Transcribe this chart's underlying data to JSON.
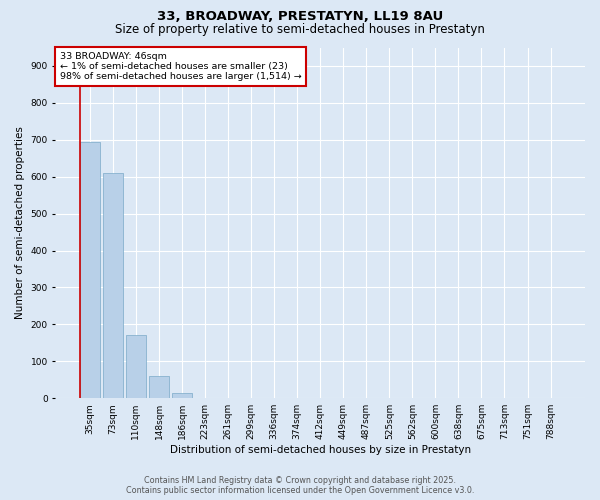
{
  "title": "33, BROADWAY, PRESTATYN, LL19 8AU",
  "subtitle": "Size of property relative to semi-detached houses in Prestatyn",
  "xlabel": "Distribution of semi-detached houses by size in Prestatyn",
  "ylabel": "Number of semi-detached properties",
  "categories": [
    "35sqm",
    "73sqm",
    "110sqm",
    "148sqm",
    "186sqm",
    "223sqm",
    "261sqm",
    "299sqm",
    "336sqm",
    "374sqm",
    "412sqm",
    "449sqm",
    "487sqm",
    "525sqm",
    "562sqm",
    "600sqm",
    "638sqm",
    "675sqm",
    "713sqm",
    "751sqm",
    "788sqm"
  ],
  "values": [
    695,
    610,
    170,
    60,
    14,
    0,
    0,
    0,
    0,
    0,
    0,
    0,
    0,
    0,
    0,
    0,
    0,
    0,
    0,
    0,
    0
  ],
  "bar_color": "#b8d0e8",
  "bar_edge_color": "#7aaac8",
  "subject_line_color": "#cc0000",
  "annotation_line1": "33 BROADWAY: 46sqm",
  "annotation_line2": "← 1% of semi-detached houses are smaller (23)",
  "annotation_line3": "98% of semi-detached houses are larger (1,514) →",
  "annotation_box_edge": "#cc0000",
  "ylim": [
    0,
    950
  ],
  "yticks": [
    0,
    100,
    200,
    300,
    400,
    500,
    600,
    700,
    800,
    900
  ],
  "bg_color": "#dce8f5",
  "plot_bg_color": "#dce8f5",
  "footer_line1": "Contains HM Land Registry data © Crown copyright and database right 2025.",
  "footer_line2": "Contains public sector information licensed under the Open Government Licence v3.0.",
  "title_fontsize": 9.5,
  "subtitle_fontsize": 8.5,
  "axis_label_fontsize": 7.5,
  "tick_fontsize": 6.5,
  "annotation_fontsize": 6.8,
  "footer_fontsize": 5.8
}
